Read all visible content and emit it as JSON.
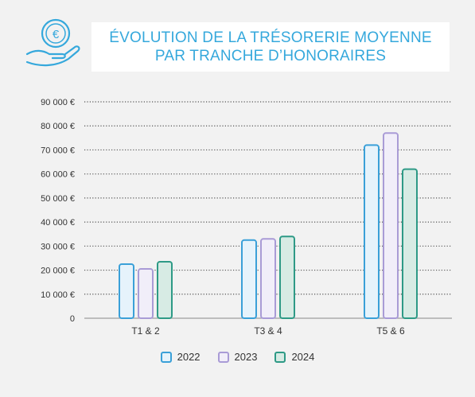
{
  "title": {
    "line1": "ÉVOLUTION DE LA TRÉSORERIE MOYENNE",
    "line2": "PAR TRANCHE D’HONORAIRES"
  },
  "logo": {
    "icon": "euro-coin-hand-icon",
    "symbol": "€"
  },
  "colors": {
    "title": "#35a8dc",
    "series": [
      {
        "stroke": "#3aa0d8",
        "fill": "#e6f3fb"
      },
      {
        "stroke": "#a99bd6",
        "fill": "#f1eef9"
      },
      {
        "stroke": "#2e9a86",
        "fill": "#d7ebe4"
      }
    ]
  },
  "chart_data": {
    "type": "bar",
    "categories": [
      "T1 & 2",
      "T3 & 4",
      "T5 & 6"
    ],
    "series": [
      {
        "name": "2022",
        "values": [
          22500,
          32500,
          72000
        ]
      },
      {
        "name": "2023",
        "values": [
          20500,
          33000,
          77000
        ]
      },
      {
        "name": "2024",
        "values": [
          23500,
          34000,
          62000
        ]
      }
    ],
    "ylim": [
      0,
      90000
    ],
    "yticks": [
      0,
      10000,
      20000,
      30000,
      40000,
      50000,
      60000,
      70000,
      80000,
      90000
    ],
    "ytick_labels": [
      "0",
      "10 000 €",
      "20 000 €",
      "30 000 €",
      "40 000 €",
      "50 000 €",
      "60 000 €",
      "70 000 €",
      "80 000 €",
      "90 000 €"
    ],
    "grid": true,
    "legend": "bottom"
  }
}
